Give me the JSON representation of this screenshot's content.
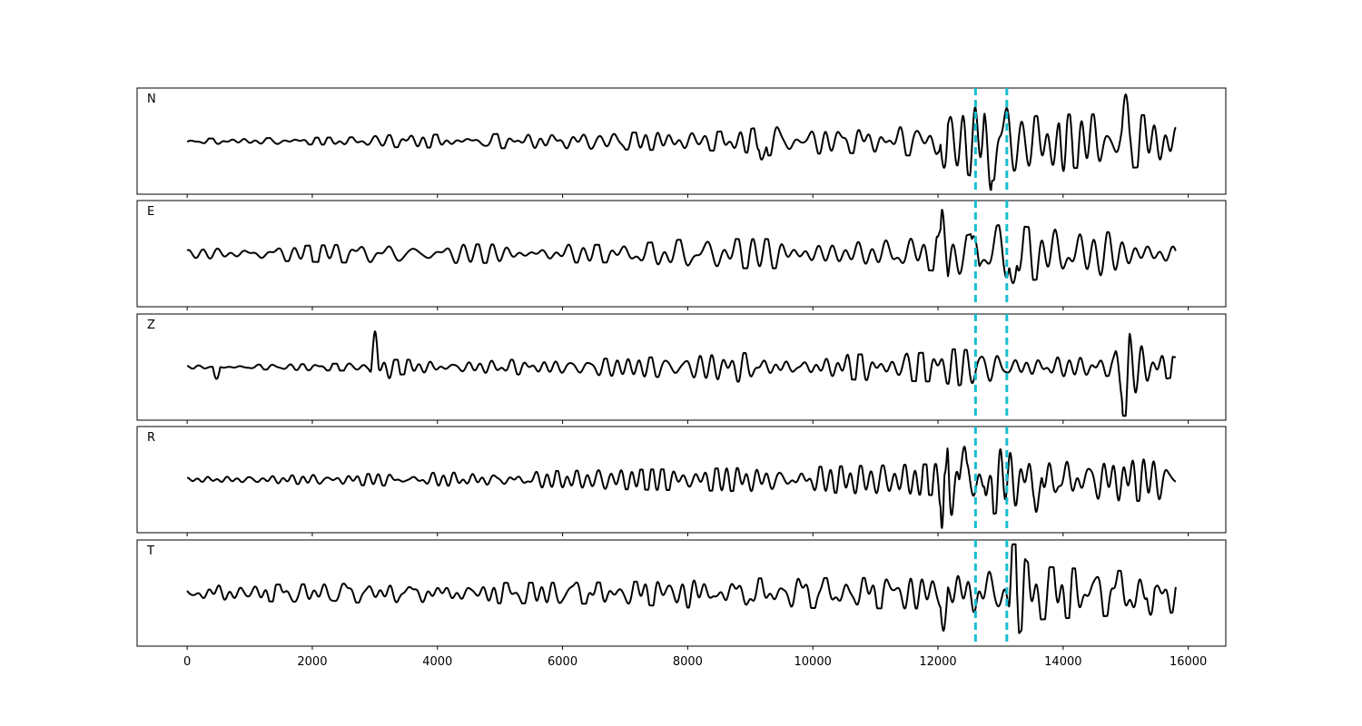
{
  "chart_data": {
    "type": "line",
    "title": "",
    "xlabel": "",
    "ylabel": "",
    "xlim": [
      -800,
      16600
    ],
    "xticks": [
      0,
      2000,
      4000,
      6000,
      8000,
      10000,
      12000,
      14000,
      16000
    ],
    "xtick_labels": [
      "0",
      "2000",
      "4000",
      "6000",
      "8000",
      "10000",
      "12000",
      "14000",
      "16000"
    ],
    "sample_count": 15801,
    "picks": [
      12600,
      13100
    ],
    "pick_color": "#17becf",
    "trace_color": "#000000",
    "panels": [
      {
        "label": "N",
        "ylim": [
          -1,
          1
        ],
        "envelope": [
          [
            0,
            0.05
          ],
          [
            2800,
            0.08
          ],
          [
            3000,
            0.12
          ],
          [
            6000,
            0.16
          ],
          [
            8800,
            0.2
          ],
          [
            9200,
            0.3
          ],
          [
            10500,
            0.24
          ],
          [
            12000,
            0.32
          ],
          [
            12100,
            0.92
          ],
          [
            12300,
            0.6
          ],
          [
            12800,
            0.85
          ],
          [
            13400,
            0.5
          ],
          [
            14000,
            0.55
          ],
          [
            15000,
            0.55
          ],
          [
            15800,
            0.5
          ]
        ],
        "bursts": [
          [
            12100,
            -0.9
          ],
          [
            12800,
            -0.85
          ],
          [
            14000,
            -0.55
          ],
          [
            15000,
            0.52
          ],
          [
            9200,
            -0.5
          ]
        ]
      },
      {
        "label": "E",
        "ylim": [
          -1,
          1
        ],
        "envelope": [
          [
            0,
            0.1
          ],
          [
            3000,
            0.2
          ],
          [
            7000,
            0.18
          ],
          [
            8000,
            0.3
          ],
          [
            11000,
            0.3
          ],
          [
            12000,
            0.35
          ],
          [
            12100,
            0.7
          ],
          [
            12400,
            0.35
          ],
          [
            13000,
            0.6
          ],
          [
            13400,
            0.55
          ],
          [
            14500,
            0.45
          ],
          [
            15800,
            0.4
          ]
        ],
        "bursts": [
          [
            12100,
            0.75
          ],
          [
            13200,
            -0.75
          ],
          [
            12600,
            0.5
          ]
        ]
      },
      {
        "label": "Z",
        "ylim": [
          -1,
          1
        ],
        "envelope": [
          [
            0,
            0.03
          ],
          [
            2900,
            0.08
          ],
          [
            3000,
            0.55
          ],
          [
            3300,
            0.15
          ],
          [
            6000,
            0.15
          ],
          [
            8000,
            0.22
          ],
          [
            8800,
            0.3
          ],
          [
            9500,
            0.22
          ],
          [
            12000,
            0.3
          ],
          [
            12300,
            0.38
          ],
          [
            13000,
            0.25
          ],
          [
            14800,
            0.18
          ],
          [
            15000,
            0.95
          ],
          [
            15400,
            0.3
          ],
          [
            15800,
            0.2
          ]
        ],
        "bursts": [
          [
            15000,
            -0.95
          ],
          [
            3000,
            0.55
          ],
          [
            470,
            -0.28
          ]
        ]
      },
      {
        "label": "R",
        "ylim": [
          -1,
          1
        ],
        "envelope": [
          [
            0,
            0.05
          ],
          [
            3000,
            0.12
          ],
          [
            7000,
            0.2
          ],
          [
            10000,
            0.26
          ],
          [
            12000,
            0.32
          ],
          [
            12100,
            0.9
          ],
          [
            12300,
            0.6
          ],
          [
            12800,
            0.75
          ],
          [
            13400,
            0.45
          ],
          [
            14000,
            0.55
          ],
          [
            15000,
            0.45
          ],
          [
            15800,
            0.4
          ]
        ],
        "bursts": [
          [
            12100,
            -0.88
          ],
          [
            12400,
            0.62
          ],
          [
            12800,
            -0.78
          ],
          [
            13600,
            -0.58
          ]
        ]
      },
      {
        "label": "T",
        "ylim": [
          -1,
          1
        ],
        "envelope": [
          [
            0,
            0.15
          ],
          [
            3000,
            0.2
          ],
          [
            7000,
            0.22
          ],
          [
            8000,
            0.3
          ],
          [
            9000,
            0.3
          ],
          [
            12000,
            0.32
          ],
          [
            12100,
            0.6
          ],
          [
            12400,
            0.35
          ],
          [
            13100,
            0.5
          ],
          [
            13200,
            0.95
          ],
          [
            13500,
            0.55
          ],
          [
            15000,
            0.45
          ],
          [
            15800,
            0.4
          ]
        ],
        "bursts": [
          [
            12100,
            -0.65
          ],
          [
            13200,
            0.92
          ],
          [
            15400,
            -0.52
          ]
        ]
      }
    ]
  }
}
